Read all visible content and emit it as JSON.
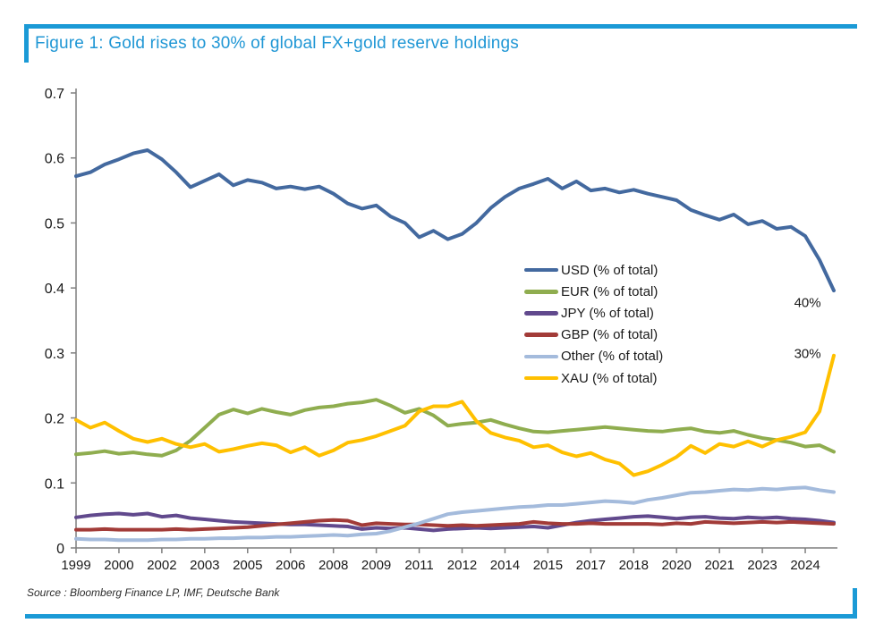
{
  "figure": {
    "title": "Figure 1: Gold rises to 30% of global FX+gold reserve holdings",
    "source": "Source : Bloomberg Finance LP, IMF, Deutsche Bank",
    "accent_color": "#1b9ad6"
  },
  "chart_data": {
    "type": "line",
    "title": "Gold rises to 30% of global FX+gold reserve holdings",
    "xlabel": "",
    "ylabel": "",
    "ylim": [
      0,
      0.7
    ],
    "x_range": [
      1999,
      2025.5
    ],
    "x_start": 1999,
    "x_step": 0.5,
    "grid": false,
    "legend_position": "center-right",
    "axis_color": "#7f7f7f",
    "tick_text_color": "#1a1a1a",
    "y_ticks": [
      {
        "value": 0.0,
        "label": "0"
      },
      {
        "value": 0.1,
        "label": "0.1"
      },
      {
        "value": 0.2,
        "label": "0.2"
      },
      {
        "value": 0.3,
        "label": "0.3"
      },
      {
        "value": 0.4,
        "label": "0.4"
      },
      {
        "value": 0.5,
        "label": "0.5"
      },
      {
        "value": 0.6,
        "label": "0.6"
      },
      {
        "value": 0.7,
        "label": "0.7"
      }
    ],
    "x_ticks": [
      {
        "pos": 1999.0,
        "label": "1999"
      },
      {
        "pos": 2000.5,
        "label": "2000"
      },
      {
        "pos": 2002.0,
        "label": "2002"
      },
      {
        "pos": 2003.5,
        "label": "2003"
      },
      {
        "pos": 2005.0,
        "label": "2005"
      },
      {
        "pos": 2006.5,
        "label": "2006"
      },
      {
        "pos": 2008.0,
        "label": "2008"
      },
      {
        "pos": 2009.5,
        "label": "2009"
      },
      {
        "pos": 2011.0,
        "label": "2011"
      },
      {
        "pos": 2012.5,
        "label": "2012"
      },
      {
        "pos": 2014.0,
        "label": "2014"
      },
      {
        "pos": 2015.5,
        "label": "2015"
      },
      {
        "pos": 2017.0,
        "label": "2017"
      },
      {
        "pos": 2018.5,
        "label": "2018"
      },
      {
        "pos": 2020.0,
        "label": "2020"
      },
      {
        "pos": 2021.5,
        "label": "2021"
      },
      {
        "pos": 2023.0,
        "label": "2023"
      },
      {
        "pos": 2024.5,
        "label": "2024"
      }
    ],
    "series": [
      {
        "name": "USD",
        "label": "USD (% of total)",
        "color": "#43699f",
        "values": [
          0.572,
          0.578,
          0.59,
          0.598,
          0.607,
          0.612,
          0.598,
          0.578,
          0.555,
          0.565,
          0.575,
          0.558,
          0.566,
          0.562,
          0.553,
          0.556,
          0.552,
          0.556,
          0.545,
          0.53,
          0.522,
          0.527,
          0.51,
          0.5,
          0.478,
          0.488,
          0.475,
          0.483,
          0.5,
          0.523,
          0.54,
          0.553,
          0.56,
          0.568,
          0.553,
          0.564,
          0.55,
          0.553,
          0.547,
          0.551,
          0.545,
          0.54,
          0.535,
          0.52,
          0.512,
          0.505,
          0.513,
          0.498,
          0.503,
          0.491,
          0.494,
          0.48,
          0.443,
          0.396
        ]
      },
      {
        "name": "EUR",
        "label": "EUR (% of total)",
        "color": "#8fad4f",
        "values": [
          0.144,
          0.146,
          0.149,
          0.145,
          0.147,
          0.144,
          0.142,
          0.15,
          0.165,
          0.185,
          0.205,
          0.213,
          0.207,
          0.214,
          0.209,
          0.205,
          0.212,
          0.216,
          0.218,
          0.222,
          0.224,
          0.228,
          0.219,
          0.208,
          0.214,
          0.204,
          0.188,
          0.191,
          0.193,
          0.197,
          0.19,
          0.184,
          0.179,
          0.178,
          0.18,
          0.182,
          0.184,
          0.186,
          0.184,
          0.182,
          0.18,
          0.179,
          0.182,
          0.184,
          0.179,
          0.177,
          0.18,
          0.174,
          0.169,
          0.166,
          0.162,
          0.156,
          0.158,
          0.148
        ]
      },
      {
        "name": "JPY",
        "label": "JPY (% of total)",
        "color": "#61498d",
        "values": [
          0.047,
          0.05,
          0.052,
          0.053,
          0.051,
          0.053,
          0.048,
          0.05,
          0.046,
          0.044,
          0.042,
          0.04,
          0.039,
          0.038,
          0.037,
          0.036,
          0.036,
          0.035,
          0.034,
          0.033,
          0.029,
          0.031,
          0.03,
          0.031,
          0.029,
          0.027,
          0.029,
          0.03,
          0.031,
          0.03,
          0.031,
          0.032,
          0.033,
          0.031,
          0.035,
          0.039,
          0.042,
          0.044,
          0.046,
          0.048,
          0.049,
          0.047,
          0.045,
          0.047,
          0.048,
          0.046,
          0.045,
          0.047,
          0.046,
          0.047,
          0.045,
          0.044,
          0.042,
          0.039
        ]
      },
      {
        "name": "GBP",
        "label": "GBP (% of total)",
        "color": "#a23b38",
        "values": [
          0.028,
          0.028,
          0.029,
          0.028,
          0.028,
          0.028,
          0.028,
          0.029,
          0.028,
          0.029,
          0.03,
          0.031,
          0.032,
          0.034,
          0.036,
          0.038,
          0.04,
          0.042,
          0.043,
          0.042,
          0.035,
          0.038,
          0.037,
          0.036,
          0.036,
          0.035,
          0.034,
          0.035,
          0.034,
          0.035,
          0.036,
          0.037,
          0.04,
          0.038,
          0.037,
          0.037,
          0.038,
          0.037,
          0.037,
          0.037,
          0.037,
          0.036,
          0.038,
          0.037,
          0.04,
          0.039,
          0.038,
          0.039,
          0.04,
          0.039,
          0.04,
          0.039,
          0.038,
          0.037
        ]
      },
      {
        "name": "Other",
        "label": "Other (% of total)",
        "color": "#a4bbdc",
        "values": [
          0.014,
          0.013,
          0.013,
          0.012,
          0.012,
          0.012,
          0.013,
          0.013,
          0.014,
          0.014,
          0.015,
          0.015,
          0.016,
          0.016,
          0.017,
          0.017,
          0.018,
          0.019,
          0.02,
          0.019,
          0.021,
          0.022,
          0.026,
          0.032,
          0.038,
          0.045,
          0.052,
          0.055,
          0.057,
          0.059,
          0.061,
          0.063,
          0.064,
          0.066,
          0.066,
          0.068,
          0.07,
          0.072,
          0.071,
          0.069,
          0.074,
          0.077,
          0.081,
          0.085,
          0.086,
          0.088,
          0.09,
          0.089,
          0.091,
          0.09,
          0.092,
          0.093,
          0.089,
          0.086
        ]
      },
      {
        "name": "XAU",
        "label": "XAU (% of total)",
        "color": "#ffc000",
        "values": [
          0.197,
          0.185,
          0.193,
          0.18,
          0.168,
          0.163,
          0.168,
          0.16,
          0.155,
          0.16,
          0.148,
          0.152,
          0.157,
          0.161,
          0.158,
          0.147,
          0.155,
          0.142,
          0.15,
          0.162,
          0.166,
          0.172,
          0.18,
          0.188,
          0.21,
          0.218,
          0.218,
          0.225,
          0.195,
          0.177,
          0.17,
          0.165,
          0.155,
          0.158,
          0.147,
          0.141,
          0.146,
          0.136,
          0.13,
          0.112,
          0.118,
          0.128,
          0.14,
          0.157,
          0.146,
          0.16,
          0.156,
          0.164,
          0.156,
          0.166,
          0.171,
          0.178,
          0.21,
          0.296
        ]
      }
    ],
    "annotations": [
      {
        "text": "40%",
        "x": 2025.05,
        "y": 0.377
      },
      {
        "text": "30%",
        "x": 2025.05,
        "y": 0.298
      }
    ]
  }
}
